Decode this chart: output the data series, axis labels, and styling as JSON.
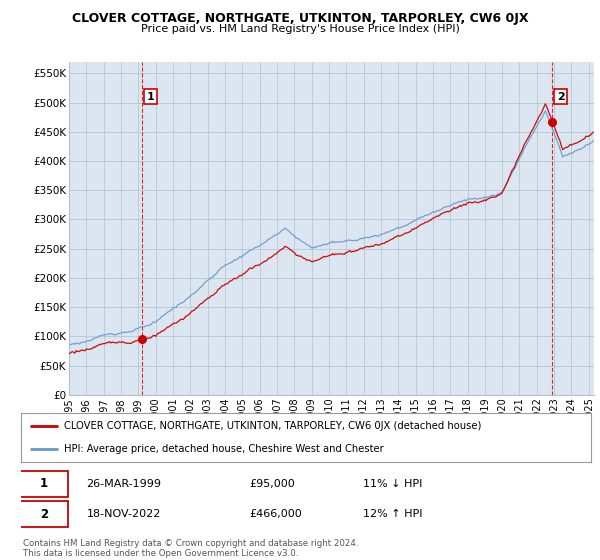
{
  "title": "CLOVER COTTAGE, NORTHGATE, UTKINTON, TARPORLEY, CW6 0JX",
  "subtitle": "Price paid vs. HM Land Registry's House Price Index (HPI)",
  "ylabel_ticks": [
    "£0",
    "£50K",
    "£100K",
    "£150K",
    "£200K",
    "£250K",
    "£300K",
    "£350K",
    "£400K",
    "£450K",
    "£500K",
    "£550K"
  ],
  "ytick_vals": [
    0,
    50000,
    100000,
    150000,
    200000,
    250000,
    300000,
    350000,
    400000,
    450000,
    500000,
    550000
  ],
  "ylim": [
    0,
    570000
  ],
  "xlim_start": 1995.0,
  "xlim_end": 2025.3,
  "sale1_x": 1999.22,
  "sale1_y": 95000,
  "sale1_label": "1",
  "sale1_date": "26-MAR-1999",
  "sale1_price": "£95,000",
  "sale1_hpi": "11% ↓ HPI",
  "sale2_x": 2022.88,
  "sale2_y": 466000,
  "sale2_label": "2",
  "sale2_date": "18-NOV-2022",
  "sale2_price": "£466,000",
  "sale2_hpi": "12% ↑ HPI",
  "line_color_property": "#cc0000",
  "line_color_hpi": "#6699cc",
  "dashed_vline_color": "#cc0000",
  "chart_bg_color": "#dce6f0",
  "legend_label_property": "CLOVER COTTAGE, NORTHGATE, UTKINTON, TARPORLEY, CW6 0JX (detached house)",
  "legend_label_hpi": "HPI: Average price, detached house, Cheshire West and Chester",
  "footer_line1": "Contains HM Land Registry data © Crown copyright and database right 2024.",
  "footer_line2": "This data is licensed under the Open Government Licence v3.0.",
  "background_color": "#ffffff",
  "grid_color": "#b0c0d0",
  "xtick_years": [
    1995,
    1996,
    1997,
    1998,
    1999,
    2000,
    2001,
    2002,
    2003,
    2004,
    2005,
    2006,
    2007,
    2008,
    2009,
    2010,
    2011,
    2012,
    2013,
    2014,
    2015,
    2016,
    2017,
    2018,
    2019,
    2020,
    2021,
    2022,
    2023,
    2024,
    2025
  ]
}
